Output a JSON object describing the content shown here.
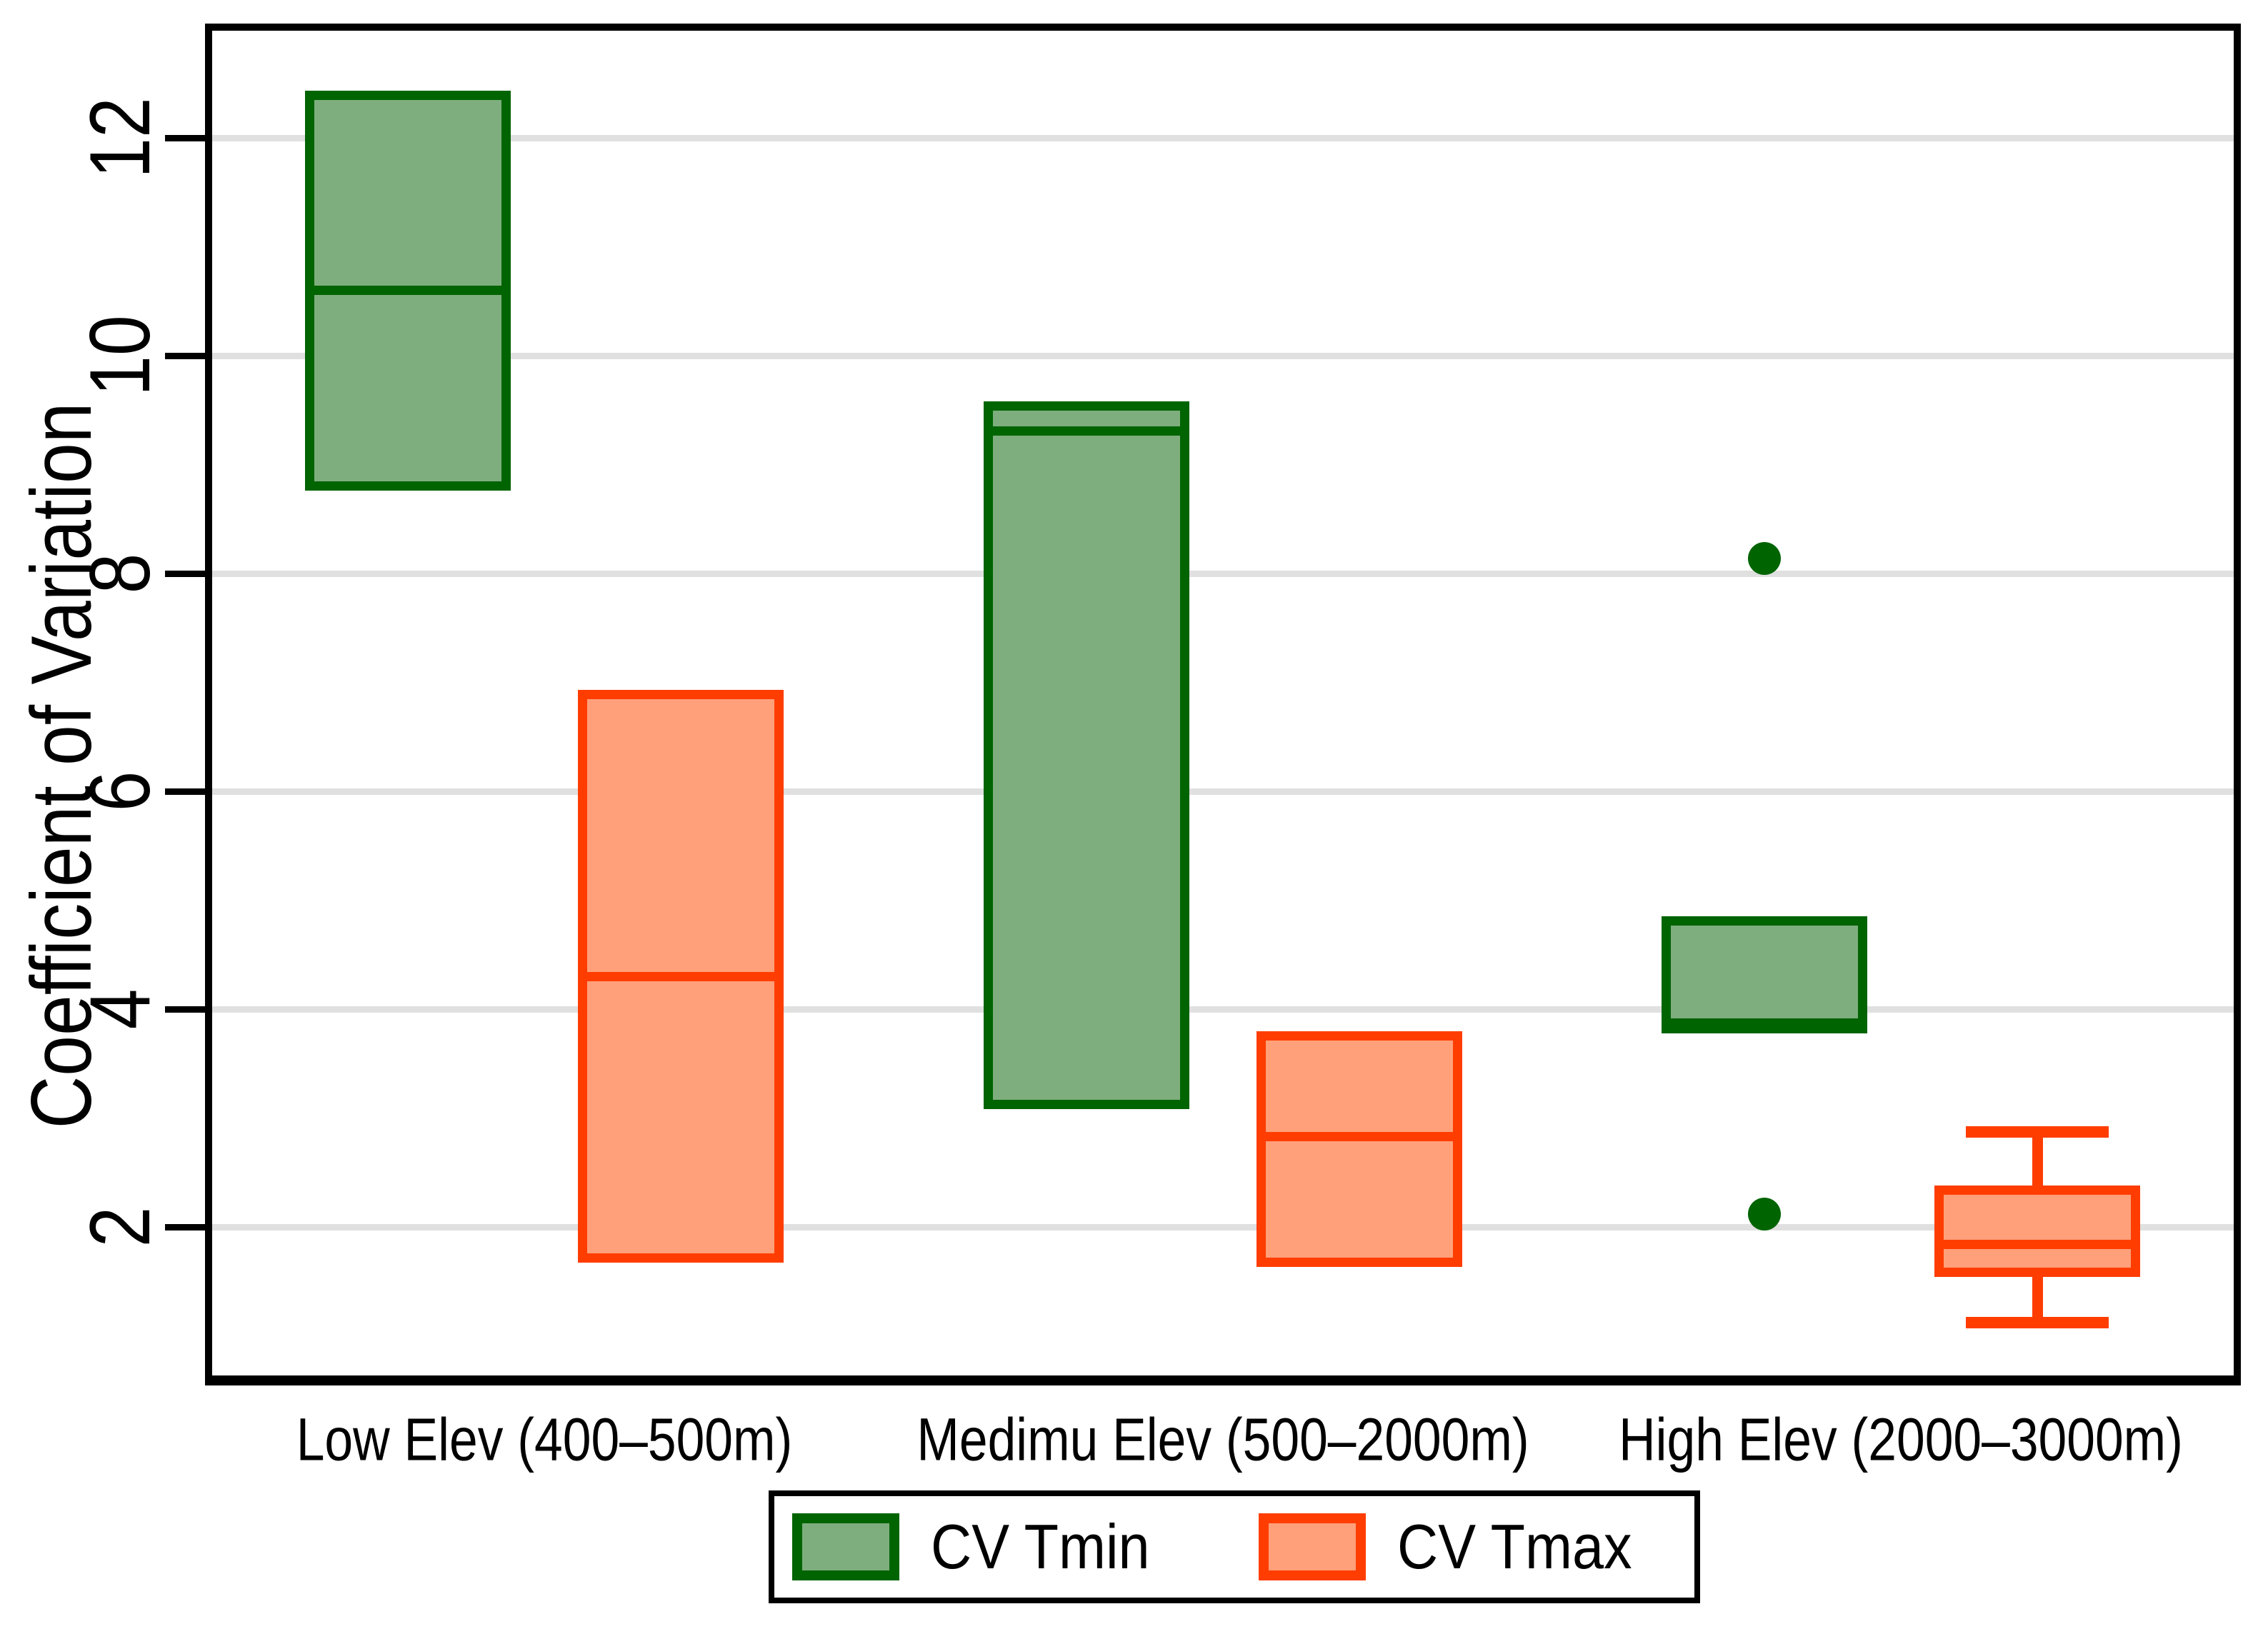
{
  "chart_data": {
    "type": "boxplot",
    "title": "",
    "ylabel": "Coefficient of Variation",
    "xlabel": "",
    "categories": [
      "Low Elev (400–500m)",
      "Medimu Elev (500–2000m)",
      "High Elev (2000–3000m)"
    ],
    "yticks": [
      2,
      4,
      6,
      8,
      10,
      12
    ],
    "ylim": [
      0.54,
      13.05
    ],
    "grid": true,
    "legend_position": "bottom",
    "series": [
      {
        "name": "CV Tmin",
        "fill_color": "#7EAE7E",
        "border_color": "#006400",
        "boxes": [
          {
            "category": "Low Elev (400–500m)",
            "whisker_low": 8.76,
            "q1": 8.76,
            "median": 10.6,
            "q3": 12.43,
            "whisker_high": 12.43,
            "outliers": []
          },
          {
            "category": "Medimu Elev (500–2000m)",
            "whisker_low": 3.08,
            "q1": 3.08,
            "median": 9.31,
            "q3": 9.58,
            "whisker_high": 9.58,
            "outliers": []
          },
          {
            "category": "High Elev (2000–3000m)",
            "whisker_low": 3.78,
            "q1": 3.78,
            "median": 3.87,
            "q3": 4.85,
            "whisker_high": 4.85,
            "outliers": [
              8.14,
              2.12
            ]
          }
        ]
      },
      {
        "name": "CV Tmax",
        "fill_color": "#FFA07A",
        "border_color": "#FF3D00",
        "boxes": [
          {
            "category": "Low Elev (400–500m)",
            "whisker_low": 1.67,
            "q1": 1.67,
            "median": 4.3,
            "q3": 6.93,
            "whisker_high": 6.93,
            "outliers": []
          },
          {
            "category": "Medimu Elev (500–2000m)",
            "whisker_low": 1.63,
            "q1": 1.63,
            "median": 2.83,
            "q3": 3.8,
            "whisker_high": 3.8,
            "outliers": []
          },
          {
            "category": "High Elev (2000–3000m)",
            "whisker_low": 1.12,
            "q1": 1.54,
            "median": 1.84,
            "q3": 2.38,
            "whisker_high": 2.87,
            "outliers": []
          }
        ]
      }
    ]
  },
  "legend": {
    "tmin_label": "CV Tmin",
    "tmax_label": "CV Tmax"
  },
  "colors": {
    "gridline": "#e0e0e0",
    "axis": "#000000",
    "green_fill": "#7EAE7E",
    "green_border": "#006400",
    "orange_fill": "#FFA07A",
    "orange_border": "#FF3D00"
  }
}
